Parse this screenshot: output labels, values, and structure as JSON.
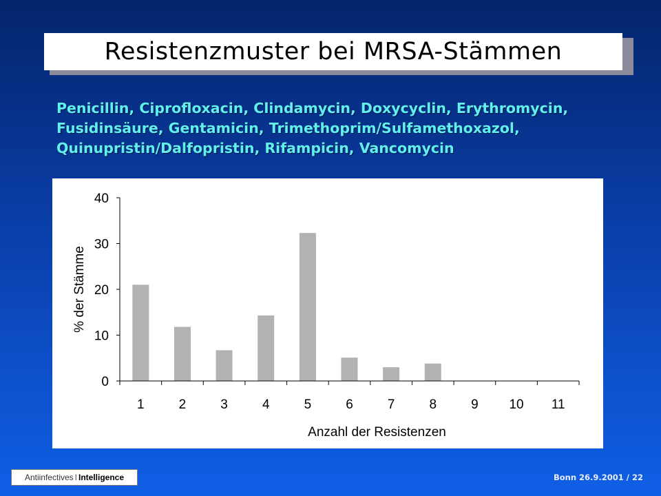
{
  "slide": {
    "title": "Resistenzmuster bei MRSA-Stämmen",
    "antibiotics_lines": [
      "Penicillin, Ciprofloxacin, Clindamycin, Doxycyclin, Erythromycin,",
      "Fusidinsäure, Gentamicin, Trimethoprim/Sulfamethoxazol,",
      "Quinupristin/Dalfopristin, Rifampicin, Vancomycin"
    ]
  },
  "footer": {
    "brand_part1": "Antiinfectives",
    "brand_separator": "I",
    "brand_part2": "Intelligence",
    "location_date": "Bonn 26.9.2001",
    "page": "/ 22"
  },
  "colors": {
    "bar": "#b2b2b2",
    "subtitle_text": "#62f0ee"
  },
  "chart_data": {
    "type": "bar",
    "categories": [
      "1",
      "2",
      "3",
      "4",
      "5",
      "6",
      "7",
      "8",
      "9",
      "10",
      "11"
    ],
    "values": [
      21,
      11.8,
      6.7,
      14.3,
      32.3,
      5.1,
      3,
      3.8,
      0,
      0,
      0
    ],
    "xlabel": "Anzahl der Resistenzen",
    "ylabel": "% der Stämme",
    "ylim": [
      0,
      40
    ],
    "yticks": [
      "0",
      "10",
      "20",
      "30",
      "40"
    ],
    "grid": false,
    "legend": "none"
  }
}
